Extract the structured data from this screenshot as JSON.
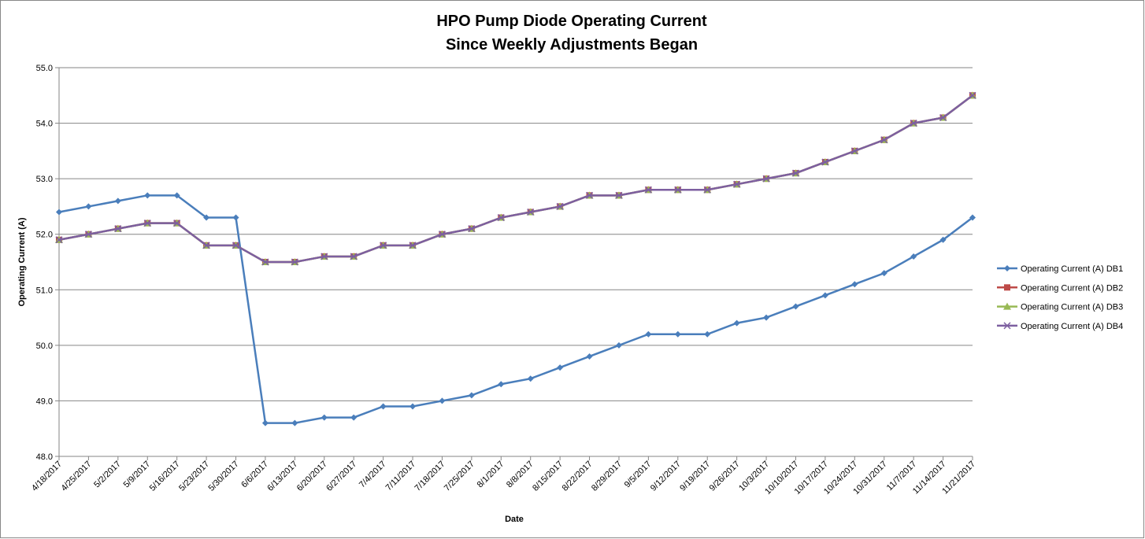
{
  "chart_data": {
    "type": "line",
    "title": "HPO Pump Diode Operating Current",
    "subtitle": "Since Weekly Adjustments Began",
    "x_label": "Date",
    "y_label": "Operating Current (A)",
    "categories": [
      "4/18/2017",
      "4/25/2017",
      "5/2/2017",
      "5/9/2017",
      "5/16/2017",
      "5/23/2017",
      "5/30/2017",
      "6/6/2017",
      "6/13/2017",
      "6/20/2017",
      "6/27/2017",
      "7/4/2017",
      "7/11/2017",
      "7/18/2017",
      "7/25/2017",
      "8/1/2017",
      "8/8/2017",
      "8/15/2017",
      "8/22/2017",
      "8/29/2017",
      "9/5/2017",
      "9/12/2017",
      "9/19/2017",
      "9/26/2017",
      "10/3/2017",
      "10/10/2017",
      "10/17/2017",
      "10/24/2017",
      "10/31/2017",
      "11/7/2017",
      "11/14/2017",
      "11/21/2017"
    ],
    "series": [
      {
        "name": "Operating Current (A) DB1",
        "color": "#4a7ebb",
        "marker": "diamond",
        "values": [
          52.4,
          52.5,
          52.6,
          52.7,
          52.7,
          52.3,
          52.3,
          48.6,
          48.6,
          48.7,
          48.7,
          48.9,
          48.9,
          49.0,
          49.1,
          49.3,
          49.4,
          49.6,
          49.8,
          50.0,
          50.2,
          50.2,
          50.2,
          50.4,
          50.5,
          50.7,
          50.9,
          51.1,
          51.3,
          51.6,
          51.9,
          52.3
        ]
      },
      {
        "name": "Operating Current (A) DB2",
        "color": "#be4b48",
        "marker": "square",
        "values": [
          51.9,
          52.0,
          52.1,
          52.2,
          52.2,
          51.8,
          51.8,
          51.5,
          51.5,
          51.6,
          51.6,
          51.8,
          51.8,
          52.0,
          52.1,
          52.3,
          52.4,
          52.5,
          52.7,
          52.7,
          52.8,
          52.8,
          52.8,
          52.9,
          53.0,
          53.1,
          53.3,
          53.5,
          53.7,
          54.0,
          54.1,
          54.5
        ]
      },
      {
        "name": "Operating Current (A) DB3",
        "color": "#98b954",
        "marker": "triangle",
        "values": [
          51.9,
          52.0,
          52.1,
          52.2,
          52.2,
          51.8,
          51.8,
          51.5,
          51.5,
          51.6,
          51.6,
          51.8,
          51.8,
          52.0,
          52.1,
          52.3,
          52.4,
          52.5,
          52.7,
          52.7,
          52.8,
          52.8,
          52.8,
          52.9,
          53.0,
          53.1,
          53.3,
          53.5,
          53.7,
          54.0,
          54.1,
          54.5
        ]
      },
      {
        "name": "Operating Current (A) DB4",
        "color": "#7d5fa0",
        "marker": "x",
        "values": [
          51.9,
          52.0,
          52.1,
          52.2,
          52.2,
          51.8,
          51.8,
          51.5,
          51.5,
          51.6,
          51.6,
          51.8,
          51.8,
          52.0,
          52.1,
          52.3,
          52.4,
          52.5,
          52.7,
          52.7,
          52.8,
          52.8,
          52.8,
          52.9,
          53.0,
          53.1,
          53.3,
          53.5,
          53.7,
          54.0,
          54.1,
          54.5
        ]
      }
    ],
    "ylim": [
      48,
      55
    ],
    "yticks": [
      {
        "value": 48,
        "label": "48.0"
      },
      {
        "value": 49,
        "label": "49.0"
      },
      {
        "value": 50,
        "label": "50.0"
      },
      {
        "value": 51,
        "label": "51.0"
      },
      {
        "value": 52,
        "label": "52.0"
      },
      {
        "value": 53,
        "label": "53.0"
      },
      {
        "value": 54,
        "label": "54.0"
      },
      {
        "value": 55,
        "label": "55.0"
      }
    ],
    "grid": true,
    "legend": "right"
  }
}
